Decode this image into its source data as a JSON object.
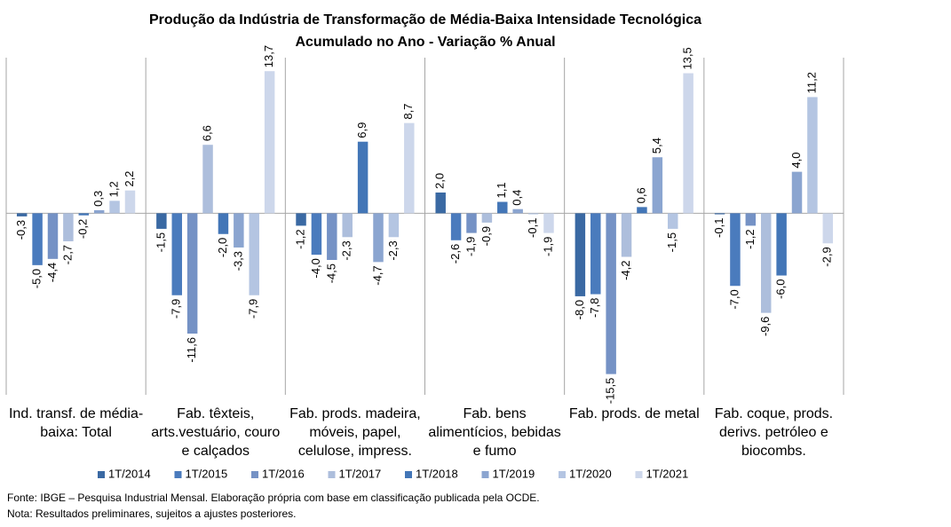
{
  "chart_data": {
    "type": "bar",
    "title": "Produção da Indústria de Transformação de Média-Baixa Intensidade Tecnológica",
    "subtitle": "Acumulado no Ano - Variação % Anual",
    "categories": [
      "Ind. transf. de média-baixa: Total",
      "Fab. têxteis, arts.vestuário, couro e calçados",
      "Fab. prods. madeira, móveis, papel, celulose, impress.",
      "Fab. bens alimentícios, bebidas e fumo",
      "Fab. prods. de metal",
      "Fab. coque, prods. derivs. petróleo e biocombs."
    ],
    "series": [
      {
        "name": "1T/2014",
        "color": "#3a69a3",
        "values": [
          -0.3,
          -1.5,
          -1.2,
          2.0,
          -8.0,
          -0.1
        ],
        "value_labels": [
          "-0,3",
          "-1,5",
          "-1,2",
          "2,0",
          "-8,0",
          "-0,1"
        ]
      },
      {
        "name": "1T/2015",
        "color": "#4a7bbd",
        "values": [
          -5.0,
          -7.9,
          -4.0,
          -2.6,
          -7.8,
          -7.0
        ],
        "value_labels": [
          "-5,0",
          "-7,9",
          "-4,0",
          "-2,6",
          "-7,8",
          "-7,0"
        ]
      },
      {
        "name": "1T/2016",
        "color": "#7592c5",
        "values": [
          -4.4,
          -11.6,
          -4.5,
          -1.9,
          -15.5,
          -1.2
        ],
        "value_labels": [
          "-4,4",
          "-11,6",
          "-4,5",
          "-1,9",
          "-15,5",
          "-1,2"
        ]
      },
      {
        "name": "1T/2017",
        "color": "#adbedc",
        "values": [
          -2.7,
          6.6,
          -2.3,
          -0.9,
          -4.2,
          -9.6
        ],
        "value_labels": [
          "-2,7",
          "6,6",
          "-2,3",
          "-0,9",
          "-4,2",
          "-9,6"
        ]
      },
      {
        "name": "1T/2018",
        "color": "#4376b7",
        "values": [
          -0.2,
          -2.0,
          6.9,
          1.1,
          0.6,
          -6.0
        ],
        "value_labels": [
          "-0,2",
          "-2,0",
          "6,9",
          "1,1",
          "0,6",
          "-6,0"
        ]
      },
      {
        "name": "1T/2019",
        "color": "#8ba5d0",
        "values": [
          0.3,
          -3.3,
          -4.7,
          0.4,
          5.4,
          4.0
        ],
        "value_labels": [
          "0,3",
          "-3,3",
          "-4,7",
          "0,4",
          "5,4",
          "4,0"
        ]
      },
      {
        "name": "1T/2020",
        "color": "#b4c5e2",
        "values": [
          1.2,
          -7.9,
          -2.3,
          -0.1,
          -1.5,
          11.2
        ],
        "value_labels": [
          "1,2",
          "-7,9",
          "-2,3",
          "-0,1",
          "-1,5",
          "11,2"
        ]
      },
      {
        "name": "1T/2021",
        "color": "#cdd7eb",
        "values": [
          2.2,
          13.7,
          8.7,
          -1.9,
          13.5,
          -2.9
        ],
        "value_labels": [
          "2,2",
          "13,7",
          "8,7",
          "-1,9",
          "13,5",
          "-2,9"
        ]
      }
    ],
    "ylim": [
      -17.5,
      15
    ],
    "notes": [
      "Fonte: IBGE – Pesquisa Industrial Mensal. Elaboração própria com base em classificação publicada pela OCDE.",
      "Nota: Resultados preliminares, sujeitos a ajustes posteriores."
    ]
  }
}
